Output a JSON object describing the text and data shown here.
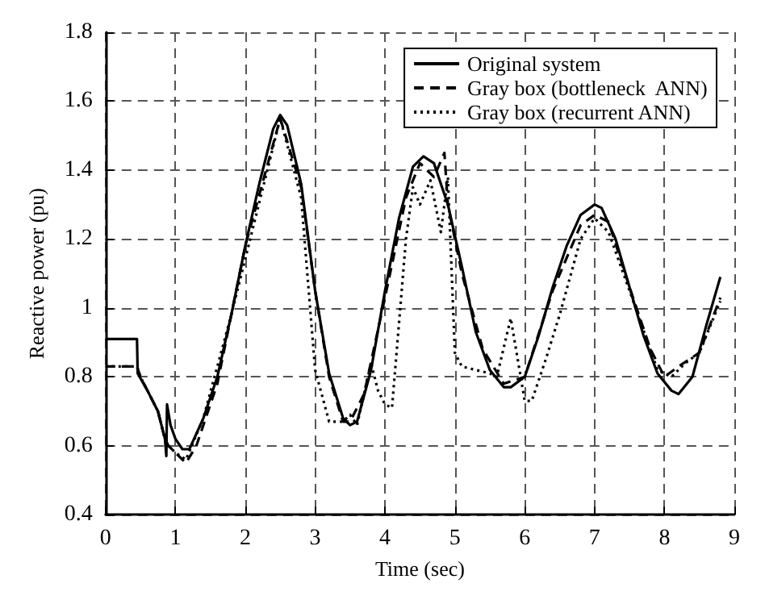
{
  "chart_data": {
    "type": "line",
    "xlabel": "Time (sec)",
    "ylabel": "Reactive power (pu)",
    "xlim": [
      0,
      9
    ],
    "xticks": [
      0,
      1,
      2,
      3,
      4,
      5,
      6,
      7,
      8,
      9
    ],
    "ylim": [
      0.4,
      1.8
    ],
    "yticks": [
      0.4,
      0.6,
      0.8,
      1,
      1.2,
      1.4,
      1.6,
      1.8
    ],
    "grid": true,
    "legend": "top right",
    "marker": "none",
    "series": [
      {
        "name": "Original system",
        "color": "#000000",
        "line_style": "solid",
        "x": [
          0,
          0.45,
          0.46,
          0.6,
          0.75,
          0.85,
          0.87,
          0.88,
          0.93,
          1.0,
          1.1,
          1.2,
          1.4,
          1.6,
          1.8,
          2.0,
          2.2,
          2.4,
          2.5,
          2.6,
          2.8,
          3.0,
          3.2,
          3.4,
          3.5,
          3.6,
          3.8,
          4.0,
          4.2,
          4.4,
          4.55,
          4.7,
          4.9,
          5.1,
          5.3,
          5.5,
          5.7,
          5.8,
          6.0,
          6.2,
          6.4,
          6.6,
          6.8,
          7.0,
          7.1,
          7.3,
          7.5,
          7.7,
          7.9,
          8.1,
          8.2,
          8.4,
          8.6,
          8.8
        ],
        "values": [
          0.91,
          0.91,
          0.81,
          0.76,
          0.7,
          0.62,
          0.57,
          0.72,
          0.66,
          0.62,
          0.59,
          0.59,
          0.68,
          0.8,
          0.98,
          1.18,
          1.36,
          1.52,
          1.56,
          1.53,
          1.36,
          1.05,
          0.81,
          0.68,
          0.66,
          0.67,
          0.82,
          1.05,
          1.26,
          1.41,
          1.44,
          1.42,
          1.3,
          1.12,
          0.93,
          0.82,
          0.77,
          0.77,
          0.8,
          0.92,
          1.06,
          1.18,
          1.27,
          1.3,
          1.29,
          1.2,
          1.06,
          0.92,
          0.81,
          0.76,
          0.75,
          0.8,
          0.95,
          1.09
        ]
      },
      {
        "name": "Gray box (bottleneck  ANN)",
        "color": "#000000",
        "line_style": "dashed",
        "x": [
          0,
          0.45,
          0.5,
          0.6,
          0.75,
          0.85,
          0.9,
          1.0,
          1.1,
          1.15,
          1.3,
          1.6,
          1.8,
          2.0,
          2.5,
          2.8,
          3.0,
          3.2,
          3.4,
          3.5,
          3.7,
          4.0,
          4.3,
          4.5,
          4.7,
          4.85,
          4.9,
          5.1,
          5.4,
          5.7,
          6.0,
          6.4,
          6.8,
          7.0,
          7.2,
          7.5,
          7.8,
          8.0,
          8.2,
          8.5,
          8.8
        ],
        "values": [
          0.83,
          0.83,
          0.8,
          0.76,
          0.7,
          0.62,
          0.6,
          0.58,
          0.56,
          0.55,
          0.6,
          0.78,
          0.98,
          1.18,
          1.55,
          1.35,
          1.05,
          0.8,
          0.67,
          0.67,
          0.75,
          1.03,
          1.32,
          1.42,
          1.38,
          1.45,
          1.3,
          1.1,
          0.88,
          0.78,
          0.8,
          1.05,
          1.24,
          1.27,
          1.25,
          1.06,
          0.88,
          0.8,
          0.83,
          0.87,
          1.03
        ]
      },
      {
        "name": "Gray box (recurrent ANN)",
        "color": "#000000",
        "line_style": "dotted",
        "x": [
          0,
          0.45,
          0.5,
          0.6,
          0.75,
          0.85,
          0.9,
          1.0,
          1.15,
          1.4,
          1.8,
          2.5,
          2.8,
          3.0,
          3.2,
          3.4,
          3.5,
          3.6,
          3.8,
          3.9,
          4.0,
          4.1,
          4.3,
          4.4,
          4.5,
          4.65,
          4.8,
          4.9,
          5.0,
          5.1,
          5.5,
          5.6,
          5.8,
          5.9,
          6.0,
          6.1,
          6.3,
          6.5,
          6.8,
          7.0,
          7.2,
          7.5,
          7.9,
          8.1,
          8.3,
          8.5,
          8.8
        ],
        "values": [
          0.83,
          0.83,
          0.8,
          0.76,
          0.7,
          0.62,
          0.6,
          0.58,
          0.56,
          0.68,
          0.98,
          1.55,
          1.32,
          0.82,
          0.67,
          0.67,
          0.69,
          0.66,
          0.84,
          0.76,
          0.72,
          0.71,
          1.2,
          1.35,
          1.3,
          1.37,
          1.22,
          1.38,
          0.87,
          0.83,
          0.81,
          0.8,
          0.97,
          0.85,
          0.73,
          0.73,
          0.85,
          0.98,
          1.2,
          1.26,
          1.22,
          1.05,
          0.82,
          0.8,
          0.84,
          0.87,
          1.02
        ]
      }
    ]
  }
}
